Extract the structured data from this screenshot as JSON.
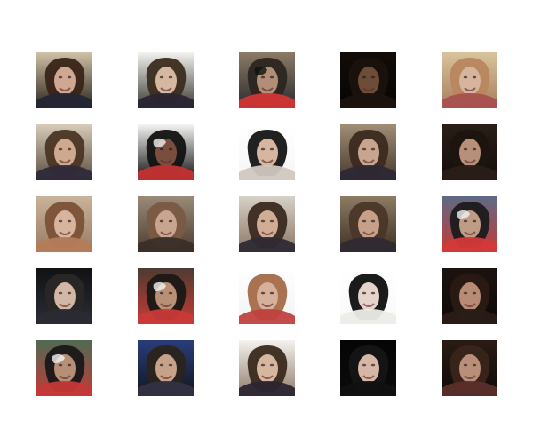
{
  "figure": {
    "rows": 5,
    "cols": 5,
    "tiles": [
      {
        "bg_top": "#cfc2a8",
        "bg_bottom": "#2b241d",
        "hair": "#3a2418",
        "skin": "#cfa792",
        "shirt": "#242634",
        "accent": ""
      },
      {
        "bg_top": "#f2f2ee",
        "bg_bottom": "#3b3a33",
        "hair": "#3b2d1f",
        "skin": "#d6b8a0",
        "shirt": "#2a2533",
        "accent": ""
      },
      {
        "bg_top": "#8b7b66",
        "bg_bottom": "#2b2a2e",
        "hair": "#2c2520",
        "skin": "#b18f76",
        "shirt": "#d33635",
        "accent": "#101010"
      },
      {
        "bg_top": "#120c08",
        "bg_bottom": "#060504",
        "hair": "#1b120d",
        "skin": "#6d4c38",
        "shirt": "#1c130e",
        "accent": ""
      },
      {
        "bg_top": "#d7c49d",
        "bg_bottom": "#a97b5d",
        "hair": "#b8865f",
        "skin": "#d7b49d",
        "shirt": "#a8504f",
        "accent": ""
      },
      {
        "bg_top": "#d6ccb9",
        "bg_bottom": "#5c4d40",
        "hair": "#4b3524",
        "skin": "#cfa890",
        "shirt": "#2f2a3a",
        "accent": ""
      },
      {
        "bg_top": "#f4f4f2",
        "bg_bottom": "#101010",
        "hair": "#121212",
        "skin": "#7a4e3e",
        "shirt": "#c43233",
        "accent": "#f0f0f0"
      },
      {
        "bg_top": "#ffffff",
        "bg_bottom": "#f6f6f6",
        "hair": "#151515",
        "skin": "#d6b6a0",
        "shirt": "#d0c7c0",
        "accent": ""
      },
      {
        "bg_top": "#a08d76",
        "bg_bottom": "#47392e",
        "hair": "#3b2a1d",
        "skin": "#c9a58f",
        "shirt": "#2d2835",
        "accent": ""
      },
      {
        "bg_top": "#2a1e18",
        "bg_bottom": "#120d0a",
        "hair": "#1e140e",
        "skin": "#b88f7a",
        "shirt": "#2a1d18",
        "accent": ""
      },
      {
        "bg_top": "#c9b39a",
        "bg_bottom": "#9a7a62",
        "hair": "#7b5137",
        "skin": "#d8b49e",
        "shirt": "#b47c5a",
        "accent": ""
      },
      {
        "bg_top": "#9a8b78",
        "bg_bottom": "#4c3c31",
        "hair": "#7b5a45",
        "skin": "#c9a48e",
        "shirt": "#3b2e29",
        "accent": ""
      },
      {
        "bg_top": "#d6d1c7",
        "bg_bottom": "#8c7665",
        "hair": "#3b2a1f",
        "skin": "#d2ad96",
        "shirt": "#2f2b35",
        "accent": ""
      },
      {
        "bg_top": "#8d7b65",
        "bg_bottom": "#3d3026",
        "hair": "#4b3628",
        "skin": "#c8a08a",
        "shirt": "#2f2a31",
        "accent": ""
      },
      {
        "bg_top": "#5e6a86",
        "bg_bottom": "#c33b36",
        "hair": "#1c1a1e",
        "skin": "#bf9c86",
        "shirt": "#d33a39",
        "accent": "#f2f2f2"
      },
      {
        "bg_top": "#101214",
        "bg_bottom": "#2a2d34",
        "hair": "#2a2726",
        "skin": "#d2b6a6",
        "shirt": "#2a2b33",
        "accent": ""
      },
      {
        "bg_top": "#4e3b31",
        "bg_bottom": "#c53b36",
        "hair": "#1b1716",
        "skin": "#b98f78",
        "shirt": "#c93a38",
        "accent": "#f3f3f3"
      },
      {
        "bg_top": "#ffffff",
        "bg_bottom": "#f2f2f2",
        "hair": "#a46a48",
        "skin": "#d6b09a",
        "shirt": "#c0413f",
        "accent": ""
      },
      {
        "bg_top": "#ffffff",
        "bg_bottom": "#f8f8f8",
        "hair": "#0f0f10",
        "skin": "#e6d4cc",
        "shirt": "#ecece8",
        "accent": ""
      },
      {
        "bg_top": "#1b130f",
        "bg_bottom": "#0d0907",
        "hair": "#2a1a13",
        "skin": "#b78b75",
        "shirt": "#2a1c17",
        "accent": ""
      },
      {
        "bg_top": "#4f6a54",
        "bg_bottom": "#c13b38",
        "hair": "#1a1718",
        "skin": "#b78f79",
        "shirt": "#c33937",
        "accent": "#f3f3f3"
      },
      {
        "bg_top": "#2a3d7a",
        "bg_bottom": "#13161c",
        "hair": "#2a241e",
        "skin": "#c7a18a",
        "shirt": "#313243",
        "accent": ""
      },
      {
        "bg_top": "#f4f2ee",
        "bg_bottom": "#8f7b6a",
        "hair": "#3a2a1e",
        "skin": "#d7b6a0",
        "shirt": "#2c2531",
        "accent": ""
      },
      {
        "bg_top": "#050505",
        "bg_bottom": "#0b0b0b",
        "hair": "#151515",
        "skin": "#d6b6a7",
        "shirt": "#111111",
        "accent": ""
      },
      {
        "bg_top": "#2a1b14",
        "bg_bottom": "#0f0a08",
        "hair": "#3a241b",
        "skin": "#b98f7a",
        "shirt": "#5b2f2a",
        "accent": ""
      }
    ]
  }
}
